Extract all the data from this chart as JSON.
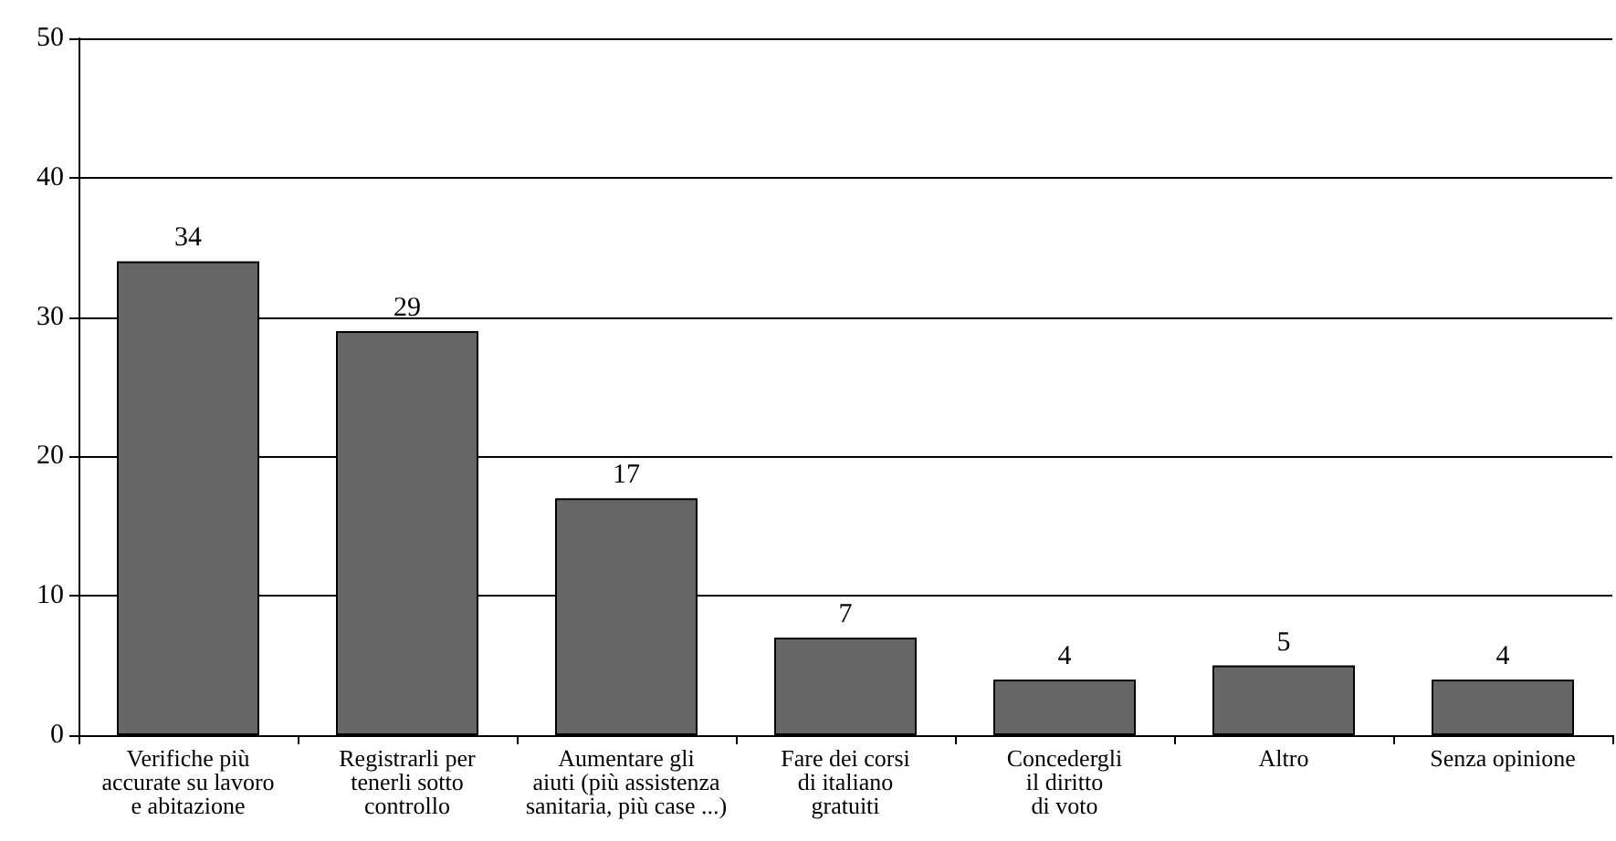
{
  "chart_data": {
    "type": "bar",
    "categories": [
      "Verifiche più\naccurate su lavoro\ne abitazione",
      "Registrarli per\ntenerli sotto\ncontrollo",
      "Aumentare gli\naiuti (più assistenza\nsanitaria, più case ...)",
      "Fare dei corsi\ndi italiano\ngratuiti",
      "Concedergli\nil diritto\ndi voto",
      "Altro",
      "Senza opinione"
    ],
    "values": [
      34,
      29,
      17,
      7,
      4,
      5,
      4
    ],
    "color": "#666666",
    "ylim": [
      0,
      50
    ],
    "yticks": [
      0,
      10,
      20,
      30,
      40,
      50
    ],
    "grid": "y",
    "data_labels": true
  }
}
